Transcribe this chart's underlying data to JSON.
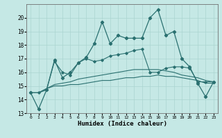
{
  "xlabel": "Humidex (Indice chaleur)",
  "xlim": [
    -0.5,
    23.5
  ],
  "ylim": [
    13,
    21
  ],
  "yticks": [
    13,
    14,
    15,
    16,
    17,
    18,
    19,
    20
  ],
  "xticks": [
    0,
    1,
    2,
    3,
    4,
    5,
    6,
    7,
    8,
    9,
    10,
    11,
    12,
    13,
    14,
    15,
    16,
    17,
    18,
    19,
    20,
    21,
    22,
    23
  ],
  "bg_color": "#c5e8e5",
  "grid_color": "#aad4d0",
  "line_color": "#2a7070",
  "series": {
    "main": [
      14.5,
      13.3,
      14.7,
      16.9,
      15.6,
      16.0,
      16.7,
      17.1,
      18.1,
      19.7,
      18.1,
      18.7,
      18.5,
      18.5,
      18.5,
      20.0,
      20.6,
      18.7,
      19.0,
      17.0,
      16.4,
      15.2,
      14.2,
      15.3
    ],
    "upper": [
      14.5,
      14.5,
      14.7,
      16.8,
      16.0,
      15.8,
      16.7,
      17.0,
      16.8,
      16.9,
      17.2,
      17.3,
      17.4,
      17.6,
      17.7,
      16.0,
      16.0,
      16.3,
      16.4,
      16.4,
      16.3,
      15.3,
      15.3,
      15.3
    ],
    "middle": [
      14.5,
      14.5,
      14.8,
      15.1,
      15.2,
      15.3,
      15.5,
      15.6,
      15.7,
      15.8,
      15.9,
      16.0,
      16.1,
      16.2,
      16.2,
      16.2,
      16.2,
      16.1,
      16.0,
      15.8,
      15.7,
      15.6,
      15.4,
      15.3
    ],
    "lower": [
      14.5,
      14.5,
      14.8,
      15.0,
      15.0,
      15.1,
      15.1,
      15.2,
      15.3,
      15.4,
      15.4,
      15.5,
      15.6,
      15.6,
      15.7,
      15.7,
      15.8,
      15.7,
      15.7,
      15.6,
      15.5,
      15.4,
      15.2,
      15.2
    ]
  }
}
